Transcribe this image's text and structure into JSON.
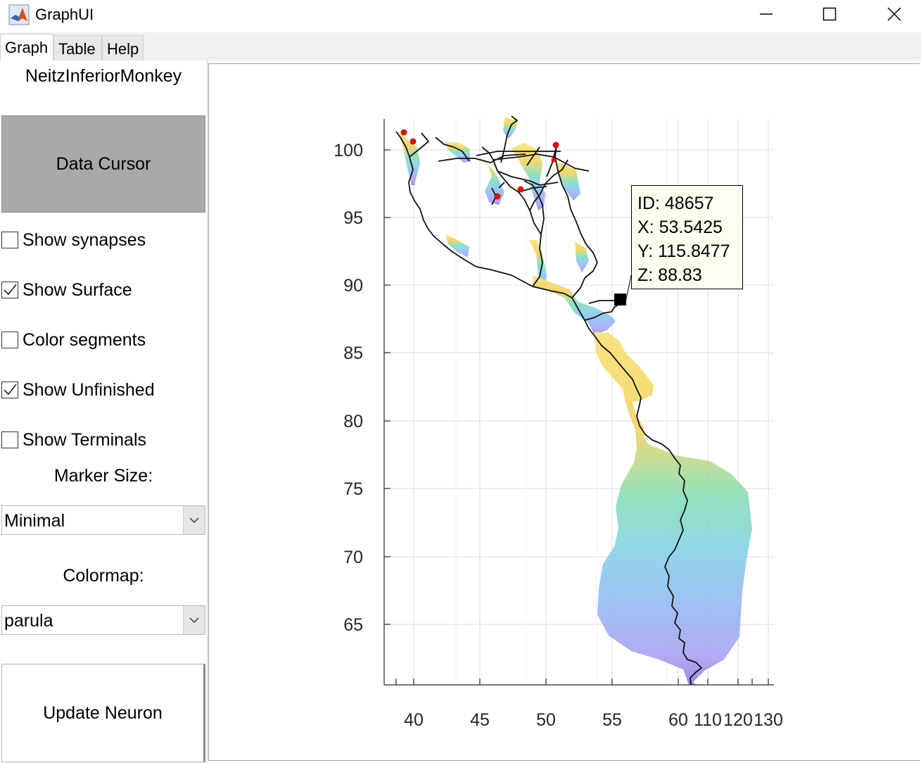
{
  "window": {
    "title": "GraphUI"
  },
  "tabs": [
    {
      "label": "Graph",
      "active": true
    },
    {
      "label": "Table",
      "active": false
    },
    {
      "label": "Help",
      "active": false
    }
  ],
  "sidebar": {
    "dataset_name": "NeitzInferiorMonkey",
    "data_cursor_label": "Data Cursor",
    "checkboxes": [
      {
        "label": "Show synapses",
        "checked": false
      },
      {
        "label": "Show Surface",
        "checked": true
      },
      {
        "label": "Color segments",
        "checked": false
      },
      {
        "label": "Show Unfinished",
        "checked": true
      },
      {
        "label": "Show Terminals",
        "checked": false
      }
    ],
    "marker_size_label": "Marker Size:",
    "marker_size_value": "Minimal",
    "colormap_label": "Colormap:",
    "colormap_value": "parula",
    "update_label": "Update Neuron"
  },
  "tooltip": {
    "id": "ID: 48657",
    "x": "X: 53.5425",
    "y": "Y: 115.8477",
    "z": "Z: 88.83"
  },
  "chart_data": {
    "type": "line",
    "x_tick_labels": [
      "40",
      "45",
      "50",
      "55",
      "60",
      "110",
      "120",
      "130"
    ],
    "y_tick_labels": [
      "65",
      "70",
      "75",
      "80",
      "85",
      "90",
      "95",
      "100"
    ],
    "ylim": [
      60.5,
      102.5
    ],
    "grid": true,
    "marker_color": "#000000",
    "unfinished_color": "#ff0000",
    "surface_colormap": "parula",
    "selected_point": {
      "x": 55.6,
      "y": 88.9
    }
  }
}
